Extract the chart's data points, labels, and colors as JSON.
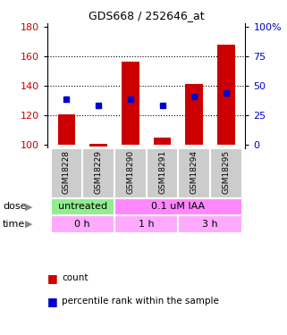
{
  "title": "GDS668 / 252646_at",
  "samples": [
    "GSM18228",
    "GSM18229",
    "GSM18290",
    "GSM18291",
    "GSM18294",
    "GSM18295"
  ],
  "bar_bottom": [
    100,
    99,
    100,
    100,
    100,
    100
  ],
  "bar_top": [
    121,
    101,
    156,
    105,
    141,
    168
  ],
  "percentile_vals": [
    131,
    127,
    131,
    127,
    133,
    135
  ],
  "ylim": [
    98,
    182
  ],
  "yticks_left": [
    100,
    120,
    140,
    160,
    180
  ],
  "yticks_right": [
    0,
    25,
    50,
    75,
    100
  ],
  "ytick_right_positions": [
    100,
    120,
    140,
    160,
    180
  ],
  "dose_labels": [
    {
      "text": "untreated",
      "start": 0,
      "end": 2,
      "color": "#90ee90"
    },
    {
      "text": "0.1 uM IAA",
      "start": 2,
      "end": 6,
      "color": "#ff88ff"
    }
  ],
  "time_labels": [
    {
      "text": "0 h",
      "start": 0,
      "end": 2,
      "color": "#ffaaff"
    },
    {
      "text": "1 h",
      "start": 2,
      "end": 4,
      "color": "#ffaaff"
    },
    {
      "text": "3 h",
      "start": 4,
      "end": 6,
      "color": "#ffaaff"
    }
  ],
  "bar_color": "#cc0000",
  "dot_color": "#0000cc",
  "left_axis_color": "#cc0000",
  "right_axis_color": "#0000cc",
  "grid_color": "black",
  "background_color": "white",
  "sample_bg_color": "#cccccc",
  "dose_arrow_color": "#888888",
  "time_arrow_color": "#888888"
}
